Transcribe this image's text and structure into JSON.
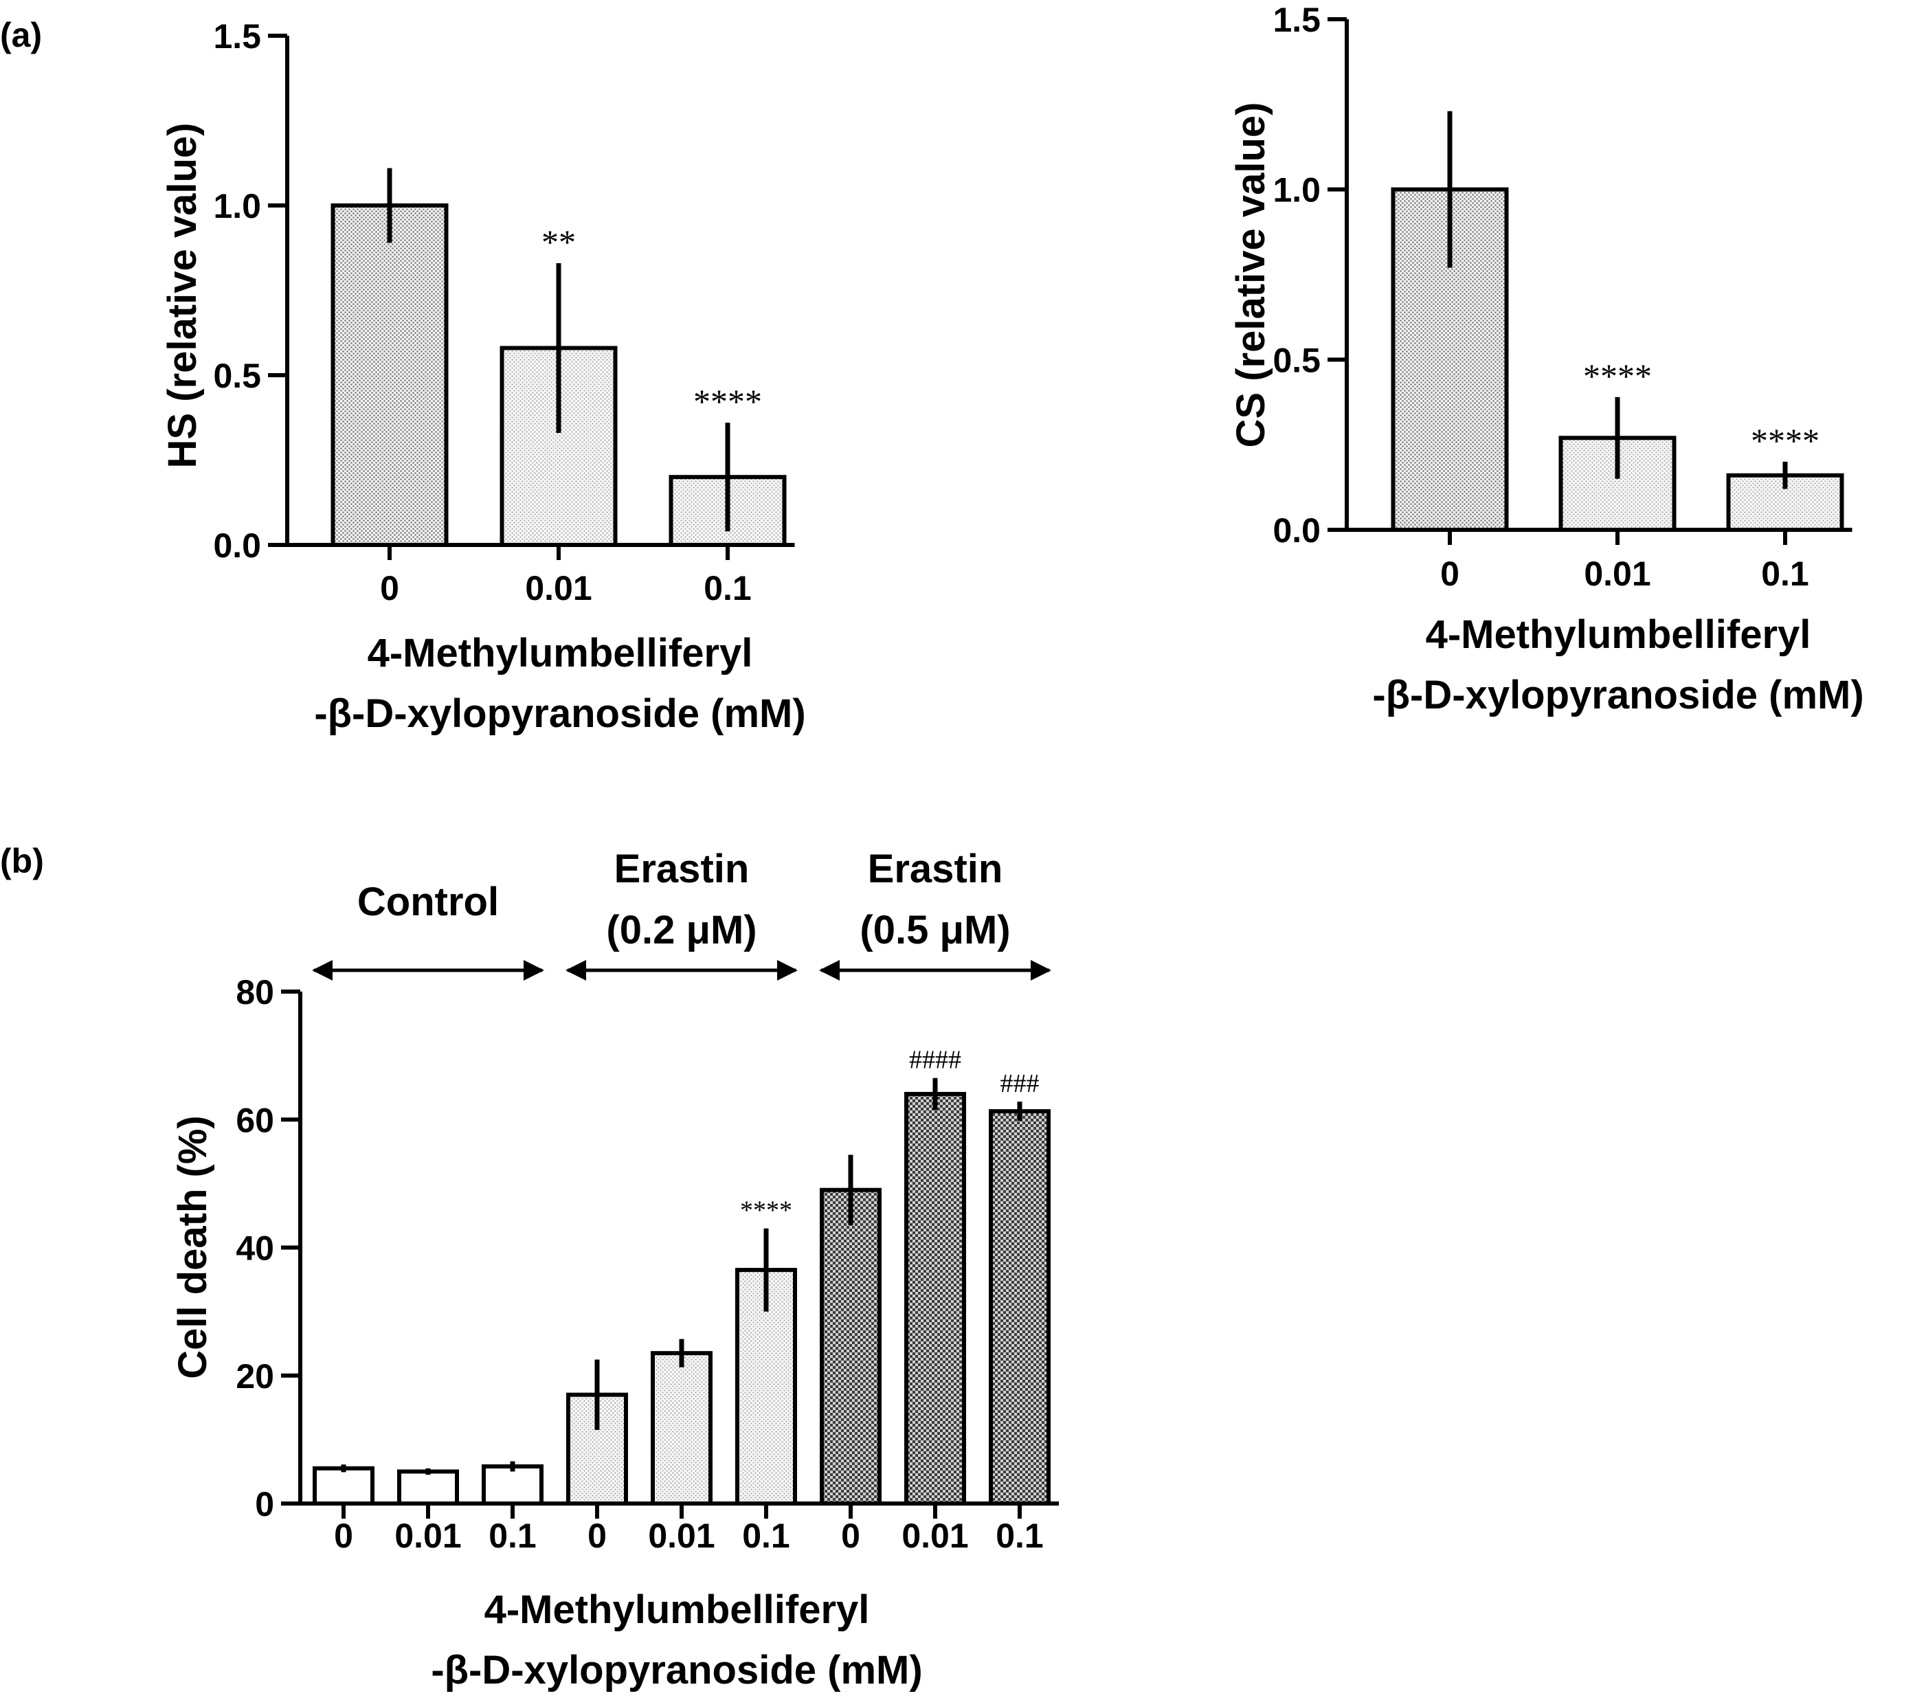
{
  "chart_data": [
    {
      "panel": "(a)",
      "type": "bar",
      "ylabel": "HS (relative value)",
      "xlabel_line1": "4-Methylumbelliferyl",
      "xlabel_line2": "-β-D-xylopyranoside (mM)",
      "categories": [
        "0",
        "0.01",
        "0.1"
      ],
      "values": [
        1.0,
        0.58,
        0.2
      ],
      "errors": [
        0.11,
        0.25,
        0.16
      ],
      "significance": [
        "",
        "**",
        "****"
      ],
      "ylim": [
        0,
        1.5
      ],
      "yticks": [
        "0.0",
        "0.5",
        "1.0",
        "1.5"
      ],
      "fills": [
        "dots-dark",
        "dots-light",
        "dots-light"
      ]
    },
    {
      "type": "bar",
      "ylabel": "CS (relative value)",
      "xlabel_line1": "4-Methylumbelliferyl",
      "xlabel_line2": "-β-D-xylopyranoside (mM)",
      "categories": [
        "0",
        "0.01",
        "0.1"
      ],
      "values": [
        1.0,
        0.27,
        0.16
      ],
      "errors": [
        0.23,
        0.12,
        0.04
      ],
      "significance": [
        "",
        "****",
        "****"
      ],
      "ylim": [
        0,
        1.5
      ],
      "yticks": [
        "0.0",
        "0.5",
        "1.0",
        "1.5"
      ],
      "fills": [
        "dots-dark",
        "dots-light",
        "dots-light"
      ]
    },
    {
      "panel": "(b)",
      "type": "bar",
      "ylabel": "Cell death (%)",
      "xlabel_line1": "4-Methylumbelliferyl",
      "xlabel_line2": "-β-D-xylopyranoside (mM)",
      "categories": [
        "0",
        "0.01",
        "0.1",
        "0",
        "0.01",
        "0.1",
        "0",
        "0.01",
        "0.1"
      ],
      "values": [
        5.5,
        5.0,
        5.8,
        17,
        23.5,
        36.5,
        49,
        64,
        61.3
      ],
      "errors": [
        0.6,
        0.5,
        0.8,
        5.5,
        2.2,
        6.5,
        5.5,
        2.5,
        1.5
      ],
      "significance": [
        "",
        "",
        "",
        "",
        "",
        "****",
        "",
        "####",
        "###"
      ],
      "ylim": [
        0,
        80
      ],
      "yticks": [
        "0",
        "20",
        "40",
        "60",
        "80"
      ],
      "fills": [
        "white",
        "white",
        "white",
        "dots-light",
        "dots-light",
        "dots-light",
        "checker-dark",
        "checker-dark",
        "checker-dark"
      ],
      "groups": [
        {
          "label_line1": "Control",
          "label_line2": "",
          "start": 0,
          "end": 2
        },
        {
          "label_line1": "Erastin",
          "label_line2": "(0.2 μM)",
          "start": 3,
          "end": 5
        },
        {
          "label_line1": "Erastin",
          "label_line2": "(0.5 μM)",
          "start": 6,
          "end": 8
        }
      ]
    }
  ]
}
